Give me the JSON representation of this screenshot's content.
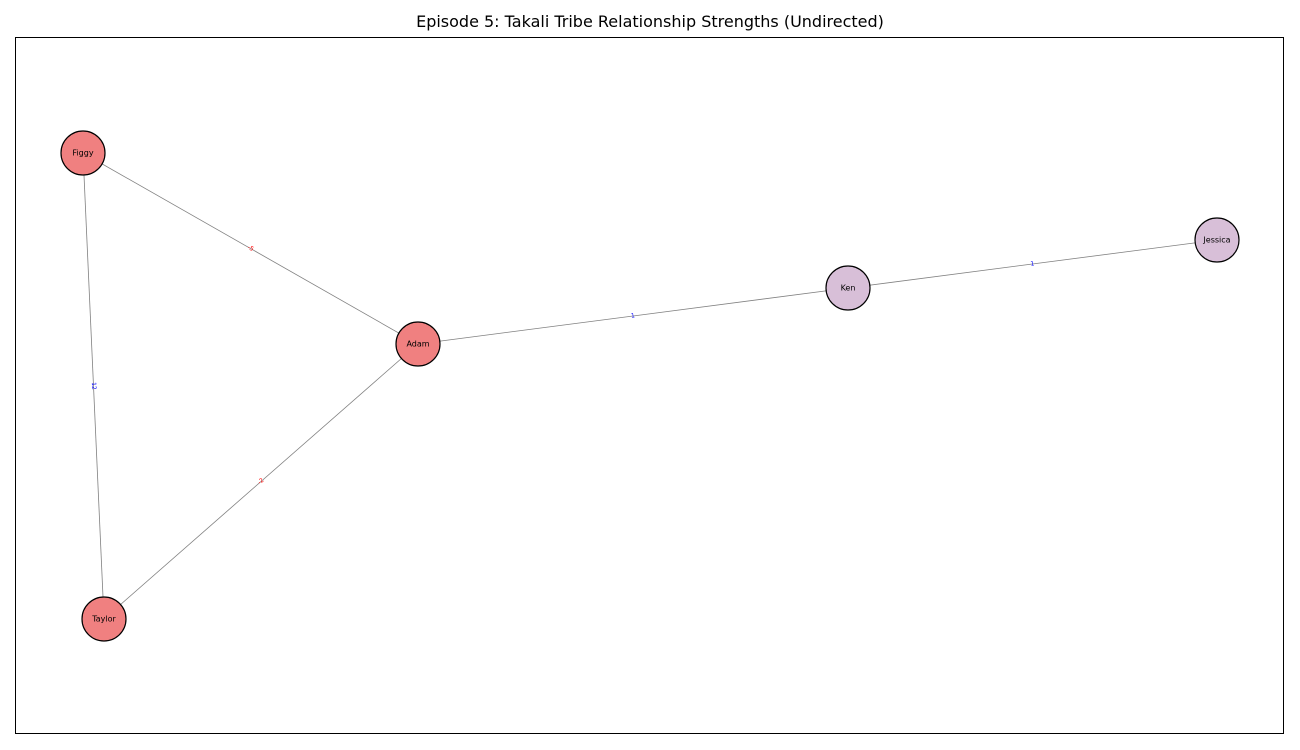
{
  "title": "Episode 5: Takali Tribe Relationship Strengths (Undirected)",
  "colors": {
    "node_red": "#f08080",
    "node_purple": "#d8bfd8",
    "edge": "#808080",
    "label_positive": "#0000ff",
    "label_negative": "#ff0000"
  },
  "nodes": [
    {
      "id": "Figgy",
      "label": "Figgy",
      "group": "red"
    },
    {
      "id": "Adam",
      "label": "Adam",
      "group": "red"
    },
    {
      "id": "Taylor",
      "label": "Taylor",
      "group": "red"
    },
    {
      "id": "Ken",
      "label": "Ken",
      "group": "purple"
    },
    {
      "id": "Jessica",
      "label": "Jessica",
      "group": "purple"
    }
  ],
  "edges": [
    {
      "source": "Figgy",
      "target": "Adam",
      "weight": "-5",
      "sign": "negative"
    },
    {
      "source": "Figgy",
      "target": "Taylor",
      "weight": "12",
      "sign": "positive"
    },
    {
      "source": "Adam",
      "target": "Taylor",
      "weight": "-2",
      "sign": "negative"
    },
    {
      "source": "Adam",
      "target": "Ken",
      "weight": "1",
      "sign": "positive"
    },
    {
      "source": "Ken",
      "target": "Jessica",
      "weight": "1",
      "sign": "positive"
    }
  ]
}
